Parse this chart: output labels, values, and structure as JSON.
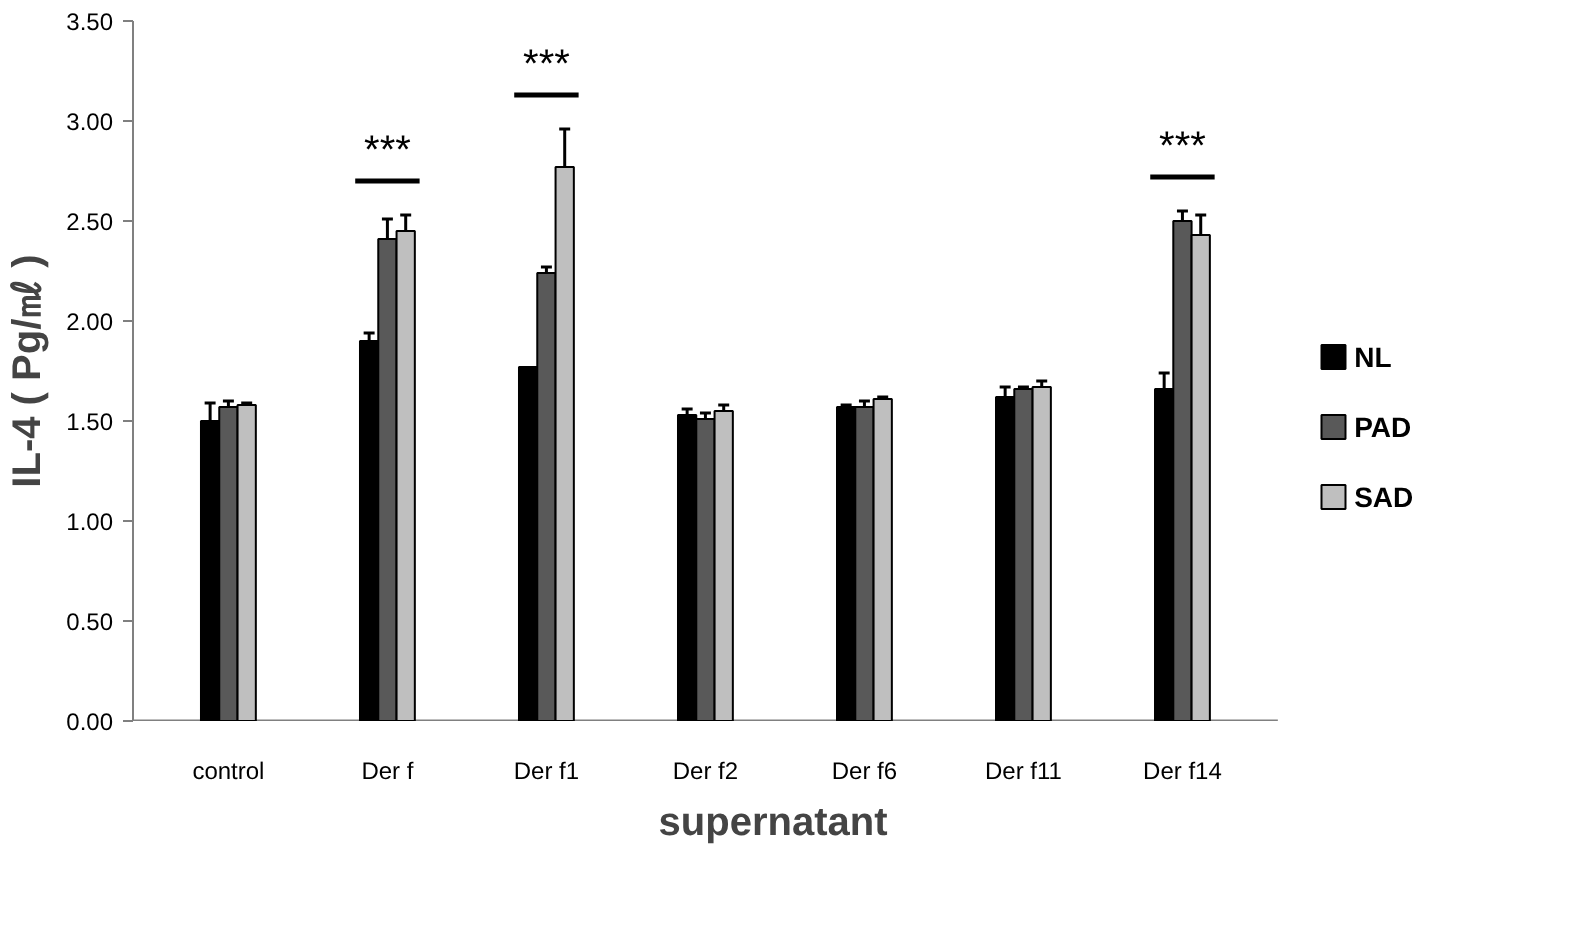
{
  "chart_data": {
    "type": "bar",
    "xlabel": "supernatant",
    "ylabel": "IL-4 ( Pg/㎖ )",
    "categories": [
      "control",
      "Der f",
      "Der f1",
      "Der f2",
      "Der f6",
      "Der f11",
      "Der f14"
    ],
    "series": [
      {
        "name": "NL",
        "color": "#000000",
        "values": [
          1.5,
          1.9,
          1.77,
          1.53,
          1.57,
          1.62,
          1.66
        ],
        "errors": [
          [
            1.5,
            1.59
          ],
          [
            1.9,
            1.94
          ],
          null,
          [
            1.53,
            1.56
          ],
          [
            1.57,
            1.58
          ],
          [
            1.62,
            1.67
          ],
          [
            1.66,
            1.74
          ]
        ]
      },
      {
        "name": "PAD",
        "color": "#595959",
        "values": [
          1.57,
          2.41,
          2.24,
          1.51,
          1.57,
          1.66,
          2.5
        ],
        "errors": [
          [
            1.57,
            1.6
          ],
          [
            2.41,
            2.51
          ],
          [
            2.24,
            2.27
          ],
          [
            1.51,
            1.54
          ],
          [
            1.57,
            1.6
          ],
          [
            1.66,
            1.67
          ],
          [
            2.5,
            2.55
          ]
        ]
      },
      {
        "name": "SAD",
        "color": "#bfbfbf",
        "values": [
          1.58,
          2.45,
          2.77,
          1.55,
          1.61,
          1.67,
          2.43
        ],
        "errors": [
          [
            1.58,
            1.59
          ],
          [
            2.45,
            2.53
          ],
          [
            2.77,
            2.96
          ],
          [
            1.55,
            1.58
          ],
          [
            1.61,
            1.62
          ],
          [
            1.67,
            1.7
          ],
          [
            2.43,
            2.53
          ]
        ]
      }
    ],
    "ylim": [
      0,
      3.5
    ],
    "yticks": [
      {
        "value": 0,
        "label": "0.00"
      },
      {
        "value": 0.5,
        "label": "0.50"
      },
      {
        "value": 1.0,
        "label": "1.00"
      },
      {
        "value": 1.5,
        "label": "1.50"
      },
      {
        "value": 2.0,
        "label": "2.00"
      },
      {
        "value": 2.5,
        "label": "2.50"
      },
      {
        "value": 3.0,
        "label": "3.00"
      },
      {
        "value": 3.5,
        "label": "3.50"
      }
    ],
    "annotations": [
      "***",
      "***",
      "***"
    ],
    "grid": false,
    "legend": "right"
  }
}
